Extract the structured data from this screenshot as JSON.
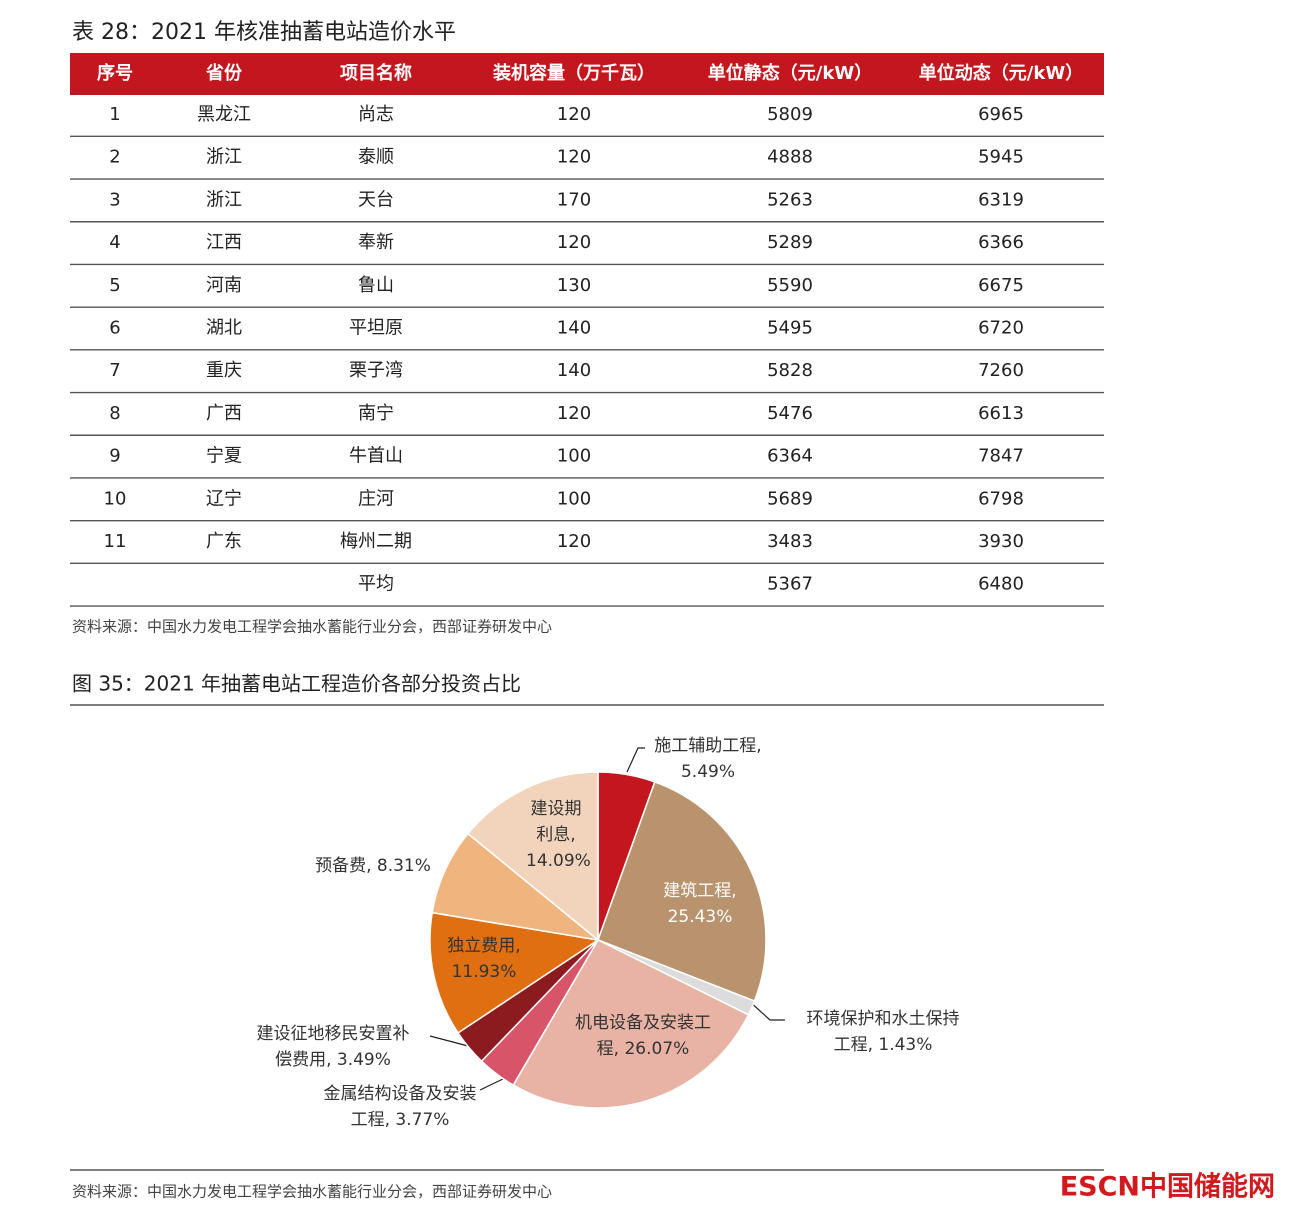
{
  "table": {
    "title": "表 28：2021 年核准抽蓄电站造价水平",
    "headers": [
      "序号",
      "省份",
      "项目名称",
      "装机容量（万千瓦）",
      "单位静态（元/kW）",
      "单位动态（元/kW）"
    ],
    "rows": [
      [
        "1",
        "黑龙江",
        "尚志",
        120,
        5809,
        6965
      ],
      [
        "2",
        "浙江",
        "泰顺",
        120,
        4888,
        5945
      ],
      [
        "3",
        "浙江",
        "天台",
        170,
        5263,
        6319
      ],
      [
        "4",
        "江西",
        "奉新",
        120,
        5289,
        6366
      ],
      [
        "5",
        "河南",
        "鲁山",
        130,
        5590,
        6675
      ],
      [
        "6",
        "湖北",
        "平坦原",
        140,
        5495,
        6720
      ],
      [
        "7",
        "重庆",
        "栗子湾",
        140,
        5828,
        7260
      ],
      [
        "8",
        "广西",
        "南宁",
        120,
        5476,
        6613
      ],
      [
        "9",
        "宁夏",
        "牛首山",
        100,
        6364,
        7847
      ],
      [
        "10",
        "辽宁",
        "庄河",
        100,
        5689,
        6798
      ],
      [
        "11",
        "广东",
        "梅州二期",
        120,
        3483,
        3930
      ],
      [
        null,
        null,
        "平均",
        null,
        5367,
        6480
      ]
    ],
    "source": "资料来源：中国水力发电工程学会抽水蓄能行业分会，西部证券研发中心"
  },
  "chart_data": {
    "type": "pie",
    "title": "图 35：2021 年抽蓄电站工程造价各部分投资占比",
    "categories": [
      "施工辅助工程,",
      "建筑工程,",
      "环境保护和水土保持工程,",
      "机电设备及安装工程,",
      "金属结构设备及安装工程,",
      "建设征地移民安置补偿费用,",
      "独立费用,",
      "预备费,",
      "建设期利息,"
    ],
    "values": [
      5.49,
      25.43,
      1.43,
      26.07,
      3.77,
      3.49,
      11.93,
      8.31,
      14.09
    ],
    "value_labels": [
      "5.49%",
      "25.43%",
      "1.43%",
      "26.07%",
      "3.77%",
      "3.49%",
      "11.93%",
      "8.31%",
      "14.09%"
    ],
    "colors": [
      "#c3161e",
      "#b8936e",
      "#dcdcdc",
      "#e8b3a5",
      "#d85468",
      "#8c1b1f",
      "#df6f10",
      "#f0b57e",
      "#f2d4bd"
    ],
    "source": "资料来源：中国水力发电工程学会抽水蓄能行业分会，西部证券研发中心"
  },
  "watermark": "ESCN中国储能网"
}
